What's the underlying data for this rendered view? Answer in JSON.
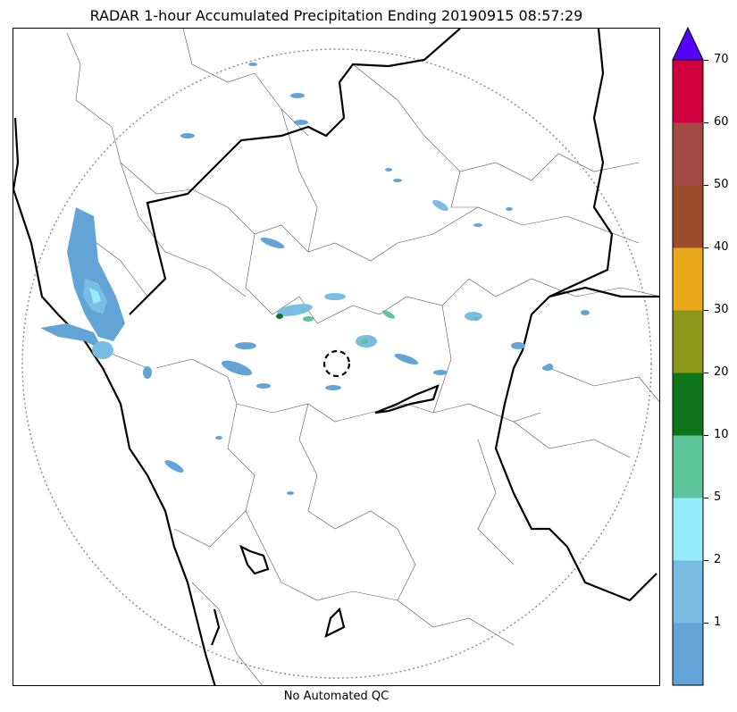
{
  "title": "RADAR 1-hour Accumulated Precipitation Ending 20190915 08:57:29",
  "footer": "No Automated QC",
  "colorbar": {
    "extend": "max",
    "extend_color": "#5500ff",
    "labels": [
      "1",
      "2",
      "5",
      "10",
      "20",
      "30",
      "40",
      "50",
      "60",
      "70"
    ],
    "bands": [
      {
        "color": "#63a4d6"
      },
      {
        "color": "#79bde3"
      },
      {
        "color": "#95ecfb"
      },
      {
        "color": "#5cc59a"
      },
      {
        "color": "#0e7319"
      },
      {
        "color": "#8c9618"
      },
      {
        "color": "#e8aa1a"
      },
      {
        "color": "#9a4f2a"
      },
      {
        "color": "#a34a45"
      },
      {
        "color": "#d00040"
      }
    ]
  },
  "map": {
    "range_ring": "dotted",
    "radar_site_marker": "dashed-circle",
    "coastline": "black",
    "state_borders": "black-thick",
    "district_borders": "gray-thin"
  }
}
